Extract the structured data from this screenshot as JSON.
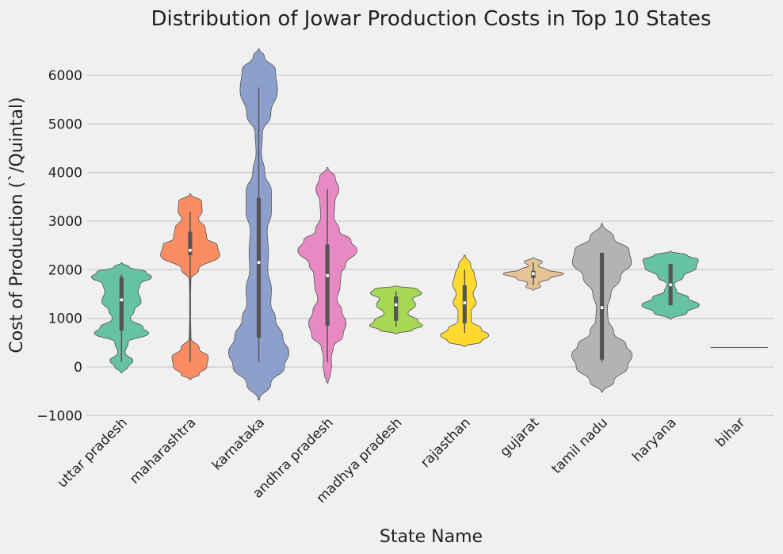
{
  "chart_data": {
    "type": "violin",
    "title": "Distribution of Jowar Production Costs in Top 10 States",
    "xlabel": "State Name",
    "ylabel": "Cost of Production (`/Quintal)",
    "ylim": [
      -1000,
      6500
    ],
    "yticks": [
      -1000,
      0,
      1000,
      2000,
      3000,
      4000,
      5000,
      6000
    ],
    "grid": "horizontal",
    "categories": [
      "uttar pradesh",
      "maharashtra",
      "karnataka",
      "andhra pradesh",
      "madhya pradesh",
      "rajasthan",
      "gujarat",
      "tamil nadu",
      "haryana",
      "bihar"
    ],
    "colors": [
      "#66c2a5",
      "#fc8d62",
      "#8da0cb",
      "#e78ac3",
      "#a6d854",
      "#ffd92f",
      "#e5c494",
      "#b3b3b3",
      "#66c2a5",
      "#fc8d62"
    ],
    "violins": [
      {
        "name": "uttar pradesh",
        "min": 100,
        "q1": 750,
        "median": 1380,
        "q3": 1850,
        "max": 1900,
        "profile": [
          [
            -120,
            0.02
          ],
          [
            0,
            0.22
          ],
          [
            120,
            0.38
          ],
          [
            300,
            0.12
          ],
          [
            500,
            0.22
          ],
          [
            700,
            0.9
          ],
          [
            800,
            0.72
          ],
          [
            1000,
            0.3
          ],
          [
            1150,
            0.42
          ],
          [
            1350,
            0.65
          ],
          [
            1550,
            0.55
          ],
          [
            1700,
            0.62
          ],
          [
            1850,
            1.0
          ],
          [
            1950,
            0.82
          ],
          [
            2060,
            0.25
          ],
          [
            2140,
            0.02
          ]
        ]
      },
      {
        "name": "maharashtra",
        "min": 100,
        "q1": 2300,
        "median": 2400,
        "q3": 2780,
        "max": 3200,
        "profile": [
          [
            -260,
            0.02
          ],
          [
            -150,
            0.3
          ],
          [
            0,
            0.55
          ],
          [
            200,
            0.6
          ],
          [
            380,
            0.3
          ],
          [
            600,
            0.03
          ],
          [
            1000,
            0.015
          ],
          [
            1500,
            0.015
          ],
          [
            1800,
            0.025
          ],
          [
            2000,
            0.28
          ],
          [
            2300,
            0.98
          ],
          [
            2500,
            0.9
          ],
          [
            2650,
            0.55
          ],
          [
            2850,
            0.5
          ],
          [
            3050,
            0.28
          ],
          [
            3200,
            0.4
          ],
          [
            3400,
            0.38
          ],
          [
            3560,
            0.02
          ]
        ]
      },
      {
        "name": "karnataka",
        "min": 100,
        "q1": 600,
        "median": 2150,
        "q3": 3480,
        "max": 5750,
        "profile": [
          [
            -680,
            0.02
          ],
          [
            -350,
            0.4
          ],
          [
            0,
            0.85
          ],
          [
            300,
            1.0
          ],
          [
            600,
            0.8
          ],
          [
            1000,
            0.55
          ],
          [
            1300,
            0.4
          ],
          [
            1600,
            0.42
          ],
          [
            2000,
            0.3
          ],
          [
            2350,
            0.32
          ],
          [
            2800,
            0.28
          ],
          [
            3200,
            0.42
          ],
          [
            3600,
            0.42
          ],
          [
            4000,
            0.2
          ],
          [
            4400,
            0.09
          ],
          [
            4800,
            0.12
          ],
          [
            5200,
            0.4
          ],
          [
            5700,
            0.62
          ],
          [
            6100,
            0.55
          ],
          [
            6400,
            0.18
          ],
          [
            6540,
            0.02
          ]
        ]
      },
      {
        "name": "andhra pradesh",
        "min": 100,
        "q1": 850,
        "median": 1880,
        "q3": 2520,
        "max": 3660,
        "profile": [
          [
            -330,
            0.02
          ],
          [
            -150,
            0.1
          ],
          [
            0,
            0.14
          ],
          [
            200,
            0.13
          ],
          [
            400,
            0.2
          ],
          [
            650,
            0.52
          ],
          [
            900,
            0.62
          ],
          [
            1150,
            0.48
          ],
          [
            1400,
            0.32
          ],
          [
            1650,
            0.42
          ],
          [
            1900,
            0.45
          ],
          [
            2100,
            0.6
          ],
          [
            2400,
            0.98
          ],
          [
            2600,
            0.78
          ],
          [
            2800,
            0.4
          ],
          [
            3100,
            0.22
          ],
          [
            3400,
            0.25
          ],
          [
            3650,
            0.38
          ],
          [
            3900,
            0.26
          ],
          [
            4100,
            0.02
          ]
        ]
      },
      {
        "name": "madhya pradesh",
        "min": 830,
        "q1": 950,
        "median": 1280,
        "q3": 1450,
        "max": 1560,
        "profile": [
          [
            680,
            0.02
          ],
          [
            760,
            0.55
          ],
          [
            850,
            0.88
          ],
          [
            950,
            0.72
          ],
          [
            1100,
            0.4
          ],
          [
            1280,
            0.65
          ],
          [
            1400,
            0.55
          ],
          [
            1520,
            0.85
          ],
          [
            1600,
            0.72
          ],
          [
            1670,
            0.02
          ]
        ]
      },
      {
        "name": "rajasthan",
        "min": 700,
        "q1": 900,
        "median": 1320,
        "q3": 1680,
        "max": 2000,
        "profile": [
          [
            420,
            0.02
          ],
          [
            520,
            0.55
          ],
          [
            650,
            0.8
          ],
          [
            780,
            0.55
          ],
          [
            950,
            0.22
          ],
          [
            1150,
            0.22
          ],
          [
            1320,
            0.38
          ],
          [
            1500,
            0.28
          ],
          [
            1700,
            0.4
          ],
          [
            1900,
            0.32
          ],
          [
            2100,
            0.2
          ],
          [
            2300,
            0.02
          ]
        ]
      },
      {
        "name": "gujarat",
        "min": 1680,
        "q1": 1830,
        "median": 1920,
        "q3": 1980,
        "max": 2150,
        "profile": [
          [
            1580,
            0.02
          ],
          [
            1650,
            0.25
          ],
          [
            1720,
            0.18
          ],
          [
            1820,
            0.55
          ],
          [
            1920,
            1.0
          ],
          [
            2000,
            0.45
          ],
          [
            2080,
            0.16
          ],
          [
            2160,
            0.3
          ],
          [
            2250,
            0.02
          ]
        ]
      },
      {
        "name": "tamil nadu",
        "min": 100,
        "q1": 150,
        "median": 1220,
        "q3": 2350,
        "max": 2350,
        "profile": [
          [
            -520,
            0.02
          ],
          [
            -300,
            0.4
          ],
          [
            0,
            0.85
          ],
          [
            250,
            1.0
          ],
          [
            450,
            0.8
          ],
          [
            700,
            0.4
          ],
          [
            1000,
            0.2
          ],
          [
            1220,
            0.18
          ],
          [
            1500,
            0.3
          ],
          [
            1850,
            0.62
          ],
          [
            2150,
            0.98
          ],
          [
            2400,
            0.9
          ],
          [
            2650,
            0.4
          ],
          [
            2950,
            0.02
          ]
        ]
      },
      {
        "name": "haryana",
        "min": 1270,
        "q1": 1270,
        "median": 1690,
        "q3": 2120,
        "max": 2120,
        "profile": [
          [
            980,
            0.02
          ],
          [
            1120,
            0.55
          ],
          [
            1270,
            0.95
          ],
          [
            1420,
            0.6
          ],
          [
            1560,
            0.2
          ],
          [
            1700,
            0.12
          ],
          [
            1850,
            0.42
          ],
          [
            2050,
            0.85
          ],
          [
            2200,
            0.92
          ],
          [
            2300,
            0.55
          ],
          [
            2380,
            0.02
          ]
        ]
      },
      {
        "name": "bihar",
        "min": 400,
        "q1": 400,
        "median": 400,
        "q3": 400,
        "max": 400,
        "profile": [
          [
            398,
            0.02
          ],
          [
            400,
            0.42
          ],
          [
            402,
            0.02
          ]
        ]
      }
    ]
  }
}
